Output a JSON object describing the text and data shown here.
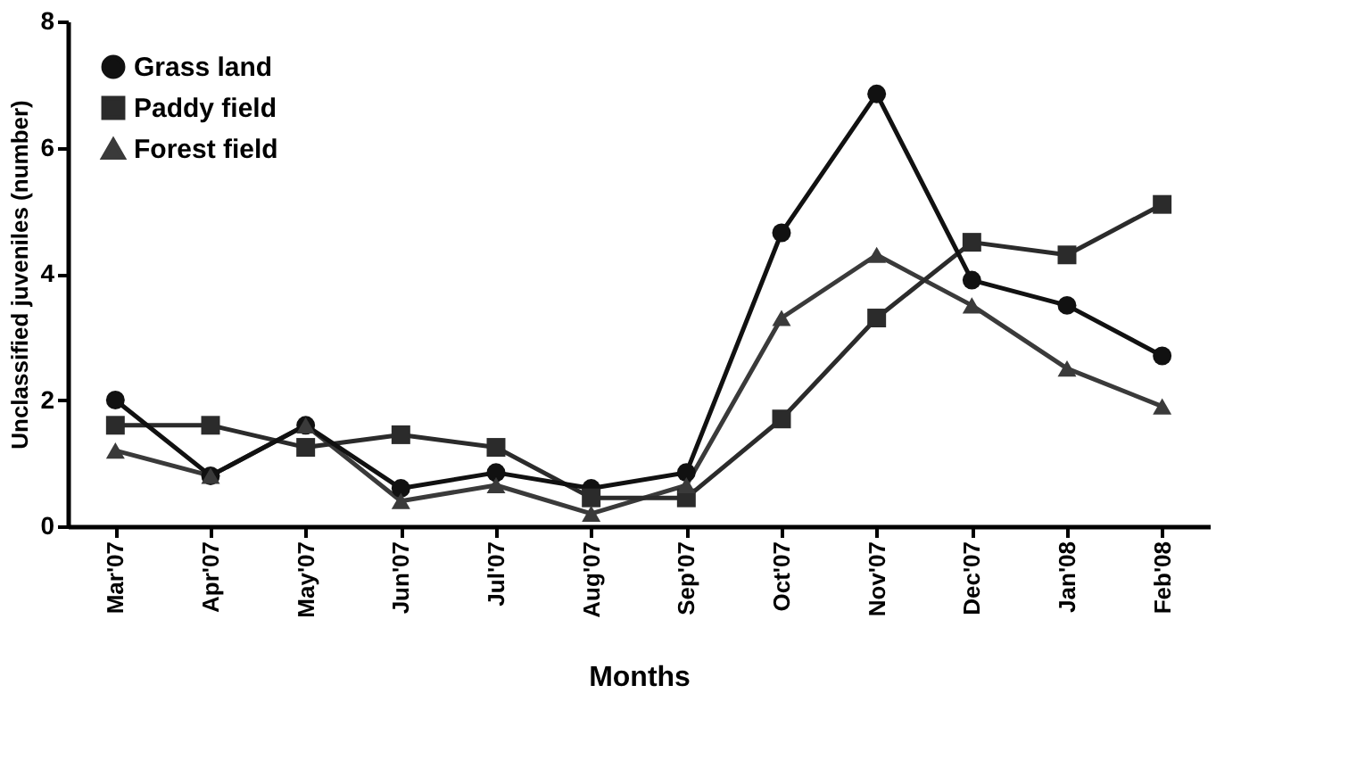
{
  "chart_data": {
    "type": "line",
    "xlabel": "Months",
    "ylabel": "Unclassified juveniles (number)",
    "categories": [
      "Mar'07",
      "Apr'07",
      "May'07",
      "Jun'07",
      "Jul'07",
      "Aug'07",
      "Sep'07",
      "Oct'07",
      "Nov'07",
      "Dec'07",
      "Jan'08",
      "Feb'08"
    ],
    "series": [
      {
        "name": "Grass land",
        "color": "#111111",
        "marker": "circle",
        "values": [
          2.0,
          0.8,
          1.6,
          0.6,
          0.85,
          0.6,
          0.85,
          4.65,
          6.85,
          3.9,
          3.5,
          2.7
        ]
      },
      {
        "name": "Paddy field",
        "color": "#2b2b2b",
        "marker": "square",
        "values": [
          1.6,
          1.6,
          1.25,
          1.45,
          1.25,
          0.45,
          0.45,
          1.7,
          3.3,
          4.5,
          4.3,
          5.1
        ]
      },
      {
        "name": "Forest field",
        "color": "#3a3a3a",
        "marker": "triangle",
        "values": [
          1.2,
          0.8,
          1.6,
          0.4,
          0.65,
          0.2,
          0.65,
          3.3,
          4.3,
          3.5,
          2.5,
          1.9
        ]
      }
    ],
    "ylim": [
      0,
      8
    ],
    "yticks": [
      0,
      2,
      4,
      6,
      8
    ],
    "grid": false,
    "legend": "top left",
    "line_style": "solid"
  }
}
